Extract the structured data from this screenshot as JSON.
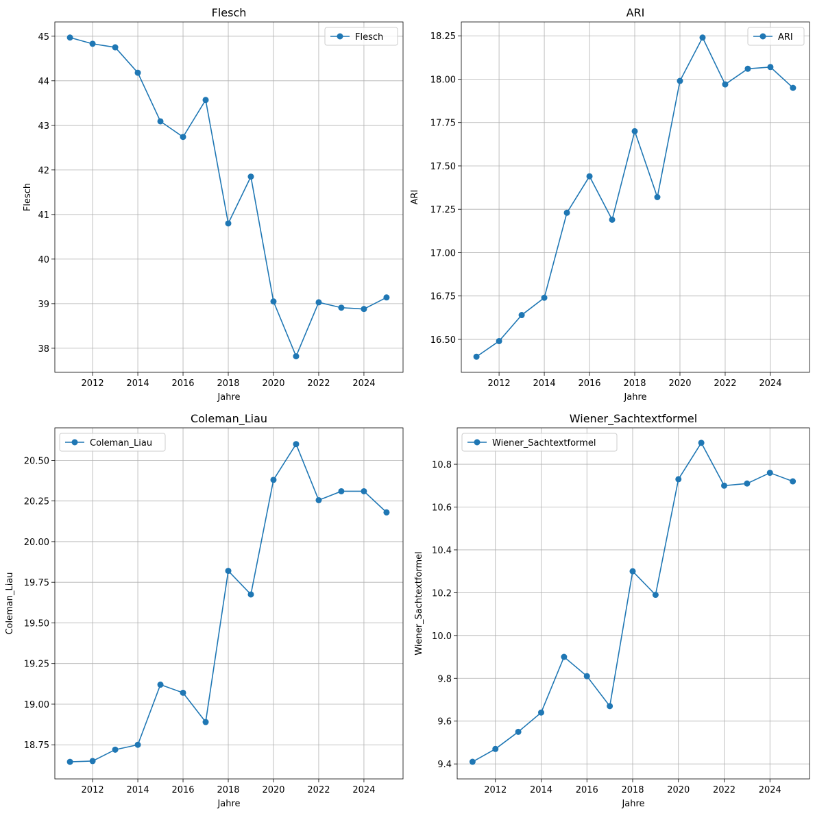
{
  "chart_data": [
    {
      "type": "line",
      "title": "Flesch",
      "xlabel": "Jahre",
      "ylabel": "Flesch",
      "legend": "upper-right",
      "grid": true,
      "color": "#1f77b4",
      "series": [
        {
          "name": "Flesch",
          "x": [
            2011,
            2012,
            2013,
            2014,
            2015,
            2016,
            2017,
            2018,
            2019,
            2020,
            2021,
            2022,
            2023,
            2024,
            2025
          ],
          "values": [
            44.97,
            44.83,
            44.75,
            44.18,
            43.09,
            42.74,
            43.57,
            40.8,
            41.85,
            39.05,
            37.82,
            39.03,
            38.91,
            38.88,
            39.14
          ]
        }
      ],
      "xlim": [
        2010.33,
        2025.73
      ],
      "ylim": [
        37.46,
        45.32
      ],
      "xticks": [
        2012,
        2014,
        2016,
        2018,
        2020,
        2022,
        2024
      ],
      "yticks": [
        "38",
        "39",
        "40",
        "41",
        "42",
        "43",
        "44",
        "45"
      ]
    },
    {
      "type": "line",
      "title": "ARI",
      "xlabel": "Jahre",
      "ylabel": "ARI",
      "legend": "upper-right",
      "grid": true,
      "color": "#1f77b4",
      "series": [
        {
          "name": "ARI",
          "x": [
            2011,
            2012,
            2013,
            2014,
            2015,
            2016,
            2017,
            2018,
            2019,
            2020,
            2021,
            2022,
            2023,
            2024,
            2025
          ],
          "values": [
            16.4,
            16.49,
            16.64,
            16.74,
            17.23,
            17.44,
            17.19,
            17.7,
            17.32,
            17.99,
            18.24,
            17.97,
            18.06,
            18.07,
            17.95
          ]
        }
      ],
      "xlim": [
        2010.33,
        2025.73
      ],
      "ylim": [
        16.31,
        18.33
      ],
      "xticks": [
        2012,
        2014,
        2016,
        2018,
        2020,
        2022,
        2024
      ],
      "yticks": [
        "16.50",
        "16.75",
        "17.00",
        "17.25",
        "17.50",
        "17.75",
        "18.00",
        "18.25"
      ]
    },
    {
      "type": "line",
      "title": "Coleman_Liau",
      "xlabel": "Jahre",
      "ylabel": "Coleman_Liau",
      "legend": "upper-left",
      "grid": true,
      "color": "#1f77b4",
      "series": [
        {
          "name": "Coleman_Liau",
          "x": [
            2011,
            2012,
            2013,
            2014,
            2015,
            2016,
            2017,
            2018,
            2019,
            2020,
            2021,
            2022,
            2023,
            2024,
            2025
          ],
          "values": [
            18.645,
            18.65,
            18.72,
            18.75,
            19.12,
            19.07,
            18.89,
            19.82,
            19.675,
            20.38,
            20.6,
            20.255,
            20.31,
            20.31,
            20.18
          ]
        }
      ],
      "xlim": [
        2010.33,
        2025.73
      ],
      "ylim": [
        18.54,
        20.7
      ],
      "xticks": [
        2012,
        2014,
        2016,
        2018,
        2020,
        2022,
        2024
      ],
      "yticks": [
        "18.75",
        "19.00",
        "19.25",
        "19.50",
        "19.75",
        "20.00",
        "20.25",
        "20.50"
      ]
    },
    {
      "type": "line",
      "title": "Wiener_Sachtextformel",
      "xlabel": "Jahre",
      "ylabel": "Wiener_Sachtextformel",
      "legend": "upper-left",
      "grid": true,
      "color": "#1f77b4",
      "series": [
        {
          "name": "Wiener_Sachtextformel",
          "x": [
            2011,
            2012,
            2013,
            2014,
            2015,
            2016,
            2017,
            2018,
            2019,
            2020,
            2021,
            2022,
            2023,
            2024,
            2025
          ],
          "values": [
            9.41,
            9.47,
            9.55,
            9.64,
            9.9,
            9.81,
            9.67,
            10.3,
            10.19,
            10.73,
            10.9,
            10.7,
            10.71,
            10.76,
            10.72
          ]
        }
      ],
      "xlim": [
        2010.33,
        2025.73
      ],
      "ylim": [
        9.33,
        10.97
      ],
      "xticks": [
        2012,
        2014,
        2016,
        2018,
        2020,
        2022,
        2024
      ],
      "yticks": [
        "9.4",
        "9.6",
        "9.8",
        "10.0",
        "10.2",
        "10.4",
        "10.6",
        "10.8"
      ]
    }
  ]
}
